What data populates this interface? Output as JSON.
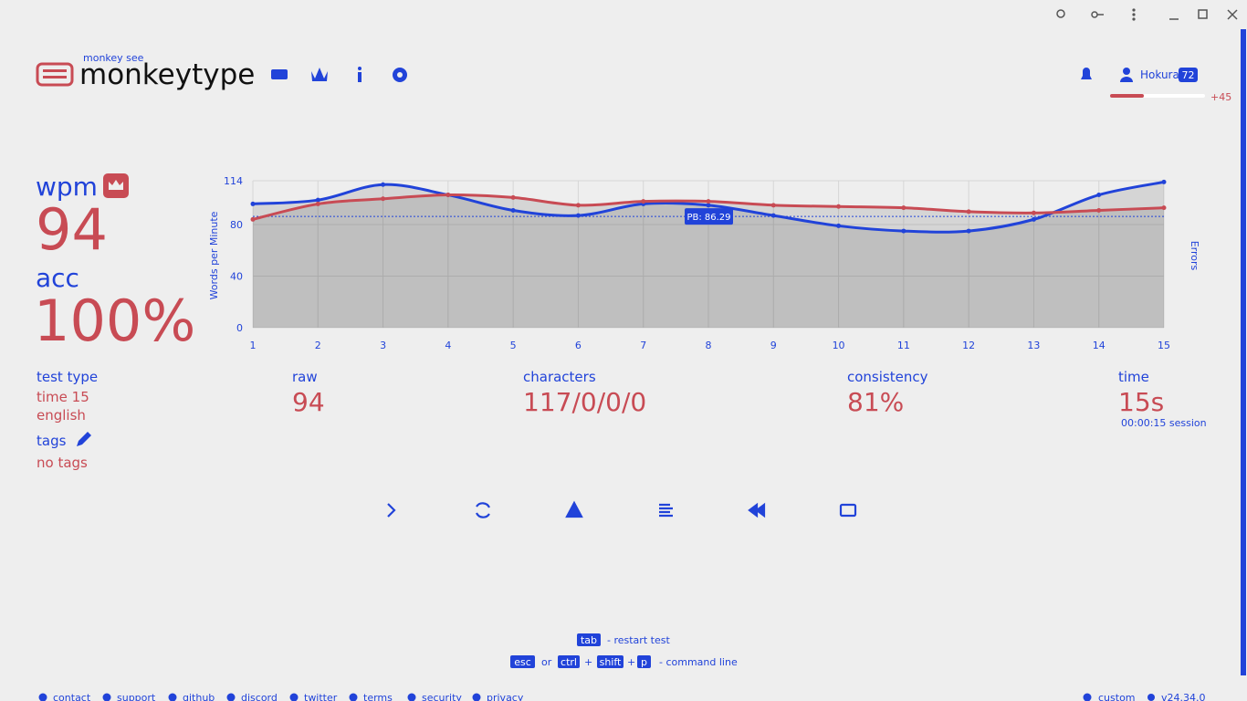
{
  "header": {
    "logo_sub": "monkey see",
    "logo": "monkeytype",
    "user": "Hokura",
    "level": "72",
    "xp_gain": "+45"
  },
  "result": {
    "wpm_label": "wpm",
    "wpm": "94",
    "acc_label": "acc",
    "acc": "100%"
  },
  "chart_data": {
    "type": "line",
    "x": [
      1,
      2,
      3,
      4,
      5,
      6,
      7,
      8,
      9,
      10,
      11,
      12,
      13,
      14,
      15
    ],
    "xlim": [
      1,
      15
    ],
    "xticks": [
      1,
      2,
      3,
      4,
      5,
      6,
      7,
      8,
      9,
      10,
      11,
      12,
      13,
      14,
      15
    ],
    "ylim": [
      0,
      114
    ],
    "yticks": [
      0,
      40,
      80,
      114
    ],
    "y_label": "Words per Minute",
    "y2_label": "Errors",
    "grid": true,
    "pb": 86.29,
    "pb_label": "PB: 86.29",
    "series": [
      {
        "color": "#2143d9",
        "values": [
          96,
          99,
          111,
          103,
          91,
          87,
          96,
          95,
          87,
          79,
          75,
          75,
          84,
          103,
          113
        ]
      },
      {
        "color": "#c84b54",
        "values": [
          84,
          96,
          100,
          103,
          101,
          95,
          98,
          98,
          95,
          94,
          93,
          90,
          89,
          91,
          93
        ]
      }
    ]
  },
  "info": {
    "test_type_label": "test type",
    "test_type": "time 15",
    "language": "english",
    "tags_label": "tags",
    "tags": "no tags"
  },
  "stats": [
    {
      "label": "raw",
      "value": "94"
    },
    {
      "label": "characters",
      "value": "117/0/0/0"
    },
    {
      "label": "consistency",
      "value": "81%"
    },
    {
      "label": "time",
      "value": "15s",
      "note": "00:00:15 session"
    }
  ],
  "shortcuts": {
    "tab": "tab",
    "restart": "- restart test",
    "esc": "esc",
    "or": "or",
    "ctrl": "ctrl",
    "plus": "+",
    "shift": "shift",
    "p": "p",
    "command": "- command line"
  },
  "footer": {
    "links": [
      "contact",
      "support",
      "github",
      "discord",
      "twitter",
      "terms",
      "security",
      "privacy"
    ],
    "theme": "custom",
    "version": "v24.34.0"
  }
}
